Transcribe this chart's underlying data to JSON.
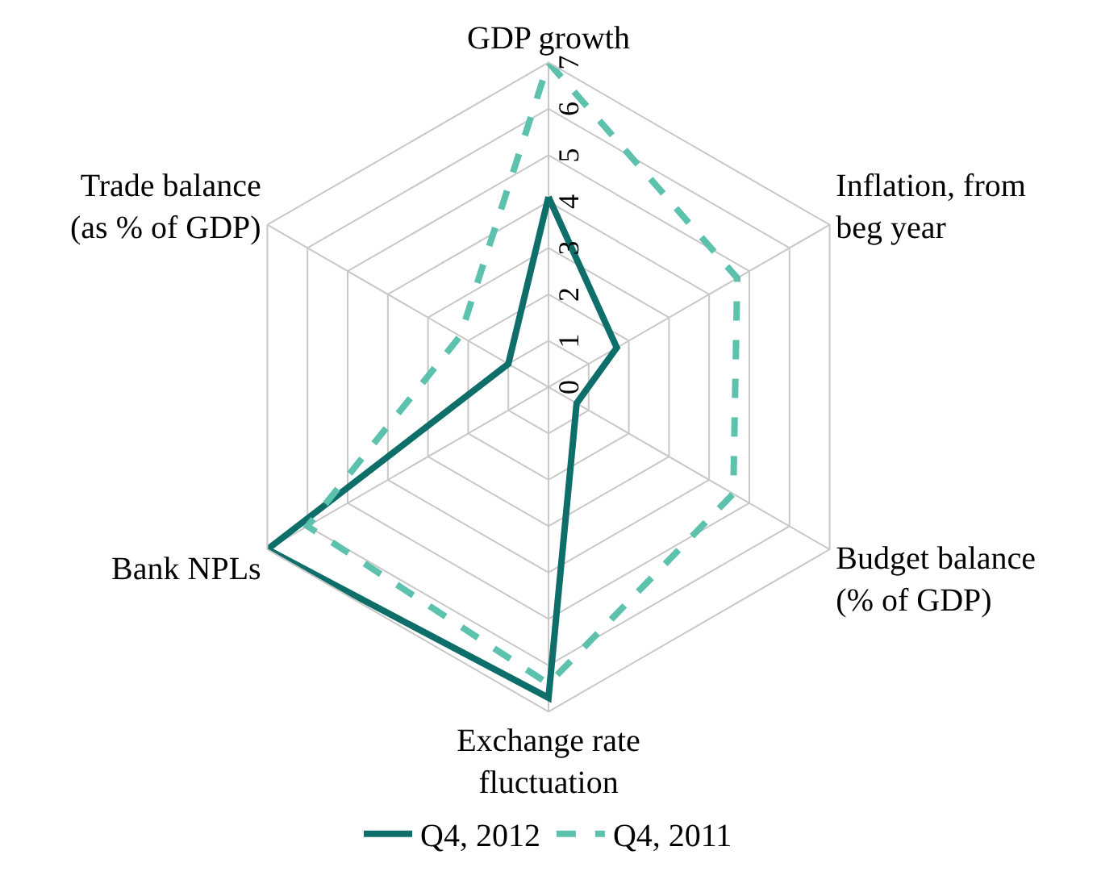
{
  "chart_data": {
    "type": "radar",
    "categories": [
      "GDP growth",
      "Inflation, from\nbeg year",
      "Budget balance\n(% of GDP)",
      "Exchange rate\nfluctuation",
      "Bank NPLs",
      "Trade balance\n(as % of GDP)"
    ],
    "series": [
      {
        "name": "Q4, 2012",
        "color": "#0e6e6a",
        "line_style": "solid",
        "values": [
          4.1,
          1.7,
          0.7,
          6.7,
          7.0,
          1.0
        ]
      },
      {
        "name": "Q4, 2011",
        "color": "#5cc2ae",
        "line_style": "dashed",
        "values": [
          7.0,
          4.7,
          4.6,
          6.4,
          6.0,
          2.2
        ]
      }
    ],
    "ylim": [
      0,
      7
    ],
    "yticks": [
      0,
      1,
      2,
      3,
      4,
      5,
      6,
      7
    ],
    "grid": true,
    "legend": "bottom",
    "marker": "none"
  }
}
